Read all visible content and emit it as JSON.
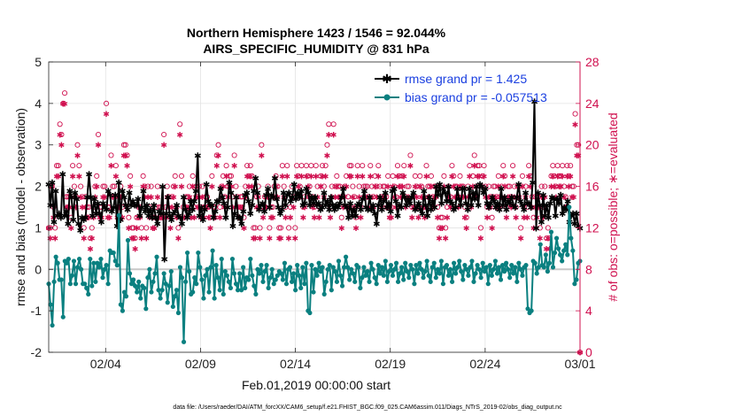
{
  "chart_data": {
    "type": "line",
    "title": "Northern Hemisphere 1423 / 1546 = 92.044%",
    "subtitle": "AIRS_SPECIFIC_HUMIDITY @ 831 hPa",
    "xlabel": "Feb.01,2019 00:00:00 start",
    "ylabel": "rmse and bias (model - observation)",
    "ylabel_right": "# of obs: o=possible; ∗=evaluated",
    "footnote": "data file: /Users/raeder/DAI/ATM_forcXX/CAM6_setup/f.e21.FHIST_BGC.f09_025.CAM6assim.011/Diags_NTrS_2019-02/obs_diag_output.nc",
    "xlim": [
      1,
      29
    ],
    "ylim": [
      -2,
      5
    ],
    "ylim_right": [
      0,
      28
    ],
    "x_ticks": [
      4,
      9,
      14,
      19,
      24,
      29
    ],
    "x_tick_labels": [
      "02/04",
      "02/09",
      "02/14",
      "02/19",
      "02/24",
      "03/01"
    ],
    "y_ticks": [
      -2,
      -1,
      0,
      1,
      2,
      3,
      4,
      5
    ],
    "y_tick_labels": [
      "-2",
      "-1",
      "0",
      "1",
      "2",
      "3",
      "4",
      "5"
    ],
    "y_ticks_right": [
      0,
      4,
      8,
      12,
      16,
      20,
      24,
      28
    ],
    "y_tick_labels_right": [
      "0",
      "4",
      "8",
      "12",
      "16",
      "20",
      "24",
      "28"
    ],
    "grid": true,
    "legend_position": "top-right",
    "series": [
      {
        "name": "rmse grand pr = 1.425",
        "color": "#000000",
        "marker": "asterisk",
        "axis": "left",
        "values": [
          2.05,
          1.55,
          2.1,
          1.15,
          1.9,
          1.3,
          1.35,
          1.25,
          2.3,
          1.3,
          1.4,
          1.1,
          1.9,
          1.75,
          1.2,
          1.85,
          1.7,
          1.1,
          0.95,
          1.25,
          1.2,
          1.25,
          1.75,
          2.3,
          1.75,
          1.3,
          1.7,
          1.35,
          1.6,
          1.35,
          1.15,
          1.6,
          1.5,
          1.45,
          1.9,
          1.8,
          1.4,
          1.5,
          1.8,
          1.05,
          2.1,
          1.2,
          1.9,
          1.75,
          1.55,
          1.45,
          1.85,
          1.55,
          1.65,
          1.55,
          1.55,
          1.7,
          1.3,
          1.5,
          1.9,
          1.4,
          1.55,
          1.3,
          1.45,
          1.25,
          1.55,
          1.25,
          1.1,
          1.4,
          1.35,
          2.0,
          0.25,
          1.35,
          1.75,
          1.3,
          1.2,
          1.35,
          1.4,
          1.55,
          1.3,
          1.25,
          1.1,
          1.75,
          1.45,
          1.25,
          1.35,
          1.65,
          1.45,
          1.65,
          1.9,
          2.75,
          1.3,
          1.5,
          1.2,
          1.45,
          2.05,
          1.65,
          1.55,
          1.55,
          1.25,
          1.4,
          1.65,
          1.65,
          1.95,
          1.75,
          1.6,
          1.25,
          1.5,
          2.1,
          1.85,
          1.05,
          1.35,
          1.75,
          1.25,
          1.25,
          1.1,
          1.4,
          1.8,
          1.85,
          1.65,
          1.35,
          1.55,
          1.9,
          2.2,
          1.85,
          1.45,
          1.55,
          1.6,
          1.4,
          1.8,
          1.95,
          1.5,
          1.8,
          1.75,
          2.2,
          1.7,
          1.5,
          1.35,
          1.45,
          1.85,
          1.55,
          1.8,
          1.85,
          1.65,
          1.75,
          2.05,
          1.7,
          1.85,
          1.75,
          1.9,
          1.55,
          1.6,
          1.95,
          1.85,
          1.55,
          1.75,
          1.6,
          1.75,
          1.55,
          1.6,
          1.45,
          1.5,
          1.85,
          1.55,
          1.65,
          1.45,
          1.75,
          1.55,
          1.45,
          1.55,
          1.5,
          1.6,
          1.75,
          1.95,
          1.55,
          1.5,
          1.25,
          1.6,
          1.3,
          1.45,
          1.3,
          1.55,
          1.6,
          1.45,
          1.7,
          1.9,
          1.5,
          1.45,
          1.75,
          1.45,
          1.55,
          1.35,
          1.1,
          1.55,
          1.75,
          1.45,
          1.65,
          1.85,
          1.5,
          1.6,
          1.4,
          1.9,
          1.95,
          1.65,
          1.3,
          1.55,
          1.5,
          1.85,
          1.75,
          1.55,
          1.7,
          1.6,
          1.75,
          1.85,
          1.45,
          1.5,
          1.6,
          1.45,
          1.35,
          1.9,
          1.55,
          1.3,
          1.75,
          1.45,
          1.65,
          1.5,
          2.0,
          1.8,
          2.05,
          1.6,
          1.95,
          1.85,
          1.65,
          2.0,
          1.65,
          1.6,
          1.45,
          1.5,
          1.95,
          1.7,
          1.55,
          1.95,
          1.95,
          1.6,
          1.45,
          1.95,
          1.55,
          1.85,
          1.7,
          2.0,
          1.55,
          2.05,
          2.0,
          1.85,
          1.95,
          1.6,
          1.5,
          1.6,
          1.75,
          1.65,
          1.5,
          1.6,
          1.45,
          1.95,
          1.55,
          1.75,
          1.45,
          1.65,
          1.6,
          1.75,
          1.55,
          1.5,
          1.75,
          2.05,
          1.65,
          1.55,
          1.45,
          1.85,
          1.6,
          1.6,
          1.5,
          2.1,
          4.05,
          1.0,
          1.85,
          1.55,
          1.15,
          1.8,
          1.3,
          1.55,
          1.25,
          1.6,
          1.75,
          1.7,
          1.3,
          1.7,
          1.6,
          1.8,
          1.35,
          1.5,
          1.45,
          1.65,
          1.15,
          1.3,
          1.35,
          1.1,
          1.35,
          1.05,
          1.0
        ]
      },
      {
        "name": "bias grand pr = -0.057513",
        "color": "#0a8080",
        "marker": "dot",
        "axis": "left",
        "values": [
          -0.35,
          -0.85,
          -1.35,
          -0.3,
          0.3,
          0.15,
          -0.25,
          -0.25,
          -1.15,
          0.2,
          0.15,
          0.25,
          -0.35,
          -0.15,
          0.2,
          -0.35,
          0.05,
          0.25,
          0.0,
          -0.35,
          -0.35,
          -0.45,
          -0.6,
          0.25,
          -0.4,
          0.15,
          -0.3,
          0.15,
          0.05,
          0.25,
          -0.2,
          0.0,
          0.1,
          -0.35,
          0.45,
          0.4,
          0.4,
          0.2,
          0.1,
          1.3,
          -0.85,
          -1.0,
          -0.55,
          -0.65,
          0.7,
          -0.1,
          -0.35,
          -0.25,
          -0.4,
          -0.55,
          -0.3,
          -0.7,
          -0.4,
          -0.45,
          -0.95,
          -0.2,
          0.0,
          -0.55,
          -0.3,
          -0.1,
          0.3,
          -0.5,
          -0.7,
          -0.5,
          -0.1,
          -0.35,
          -0.8,
          -0.4,
          -0.05,
          -0.9,
          -0.65,
          -0.5,
          -1.05,
          0.05,
          -0.2,
          -1.75,
          -0.3,
          0.4,
          -0.05,
          -0.6,
          -0.55,
          -0.2,
          -0.35,
          0.4,
          0.05,
          -0.25,
          -0.7,
          -0.15,
          0.0,
          -0.55,
          0.05,
          0.45,
          -0.7,
          0.1,
          -0.2,
          -0.5,
          0.25,
          -0.6,
          -0.05,
          -0.15,
          -0.3,
          -0.45,
          0.25,
          -0.1,
          -0.35,
          -0.5,
          -0.1,
          -0.5,
          0.05,
          -0.45,
          -0.2,
          -0.25,
          0.25,
          -0.15,
          -0.4,
          -0.6,
          0.0,
          -0.1,
          0.1,
          -0.3,
          -0.05,
          0.1,
          -0.45,
          -0.2,
          0.0,
          -0.35,
          -0.25,
          -0.15,
          -0.05,
          -0.1,
          -0.25,
          0.15,
          -0.35,
          0.0,
          0.05,
          -0.3,
          -0.1,
          -0.5,
          0.1,
          -0.15,
          -0.45,
          0.05,
          -0.35,
          0.15,
          -1.0,
          -1.05,
          0.1,
          -0.55,
          0.0,
          -0.15,
          0.15,
          -0.05,
          0.05,
          -0.6,
          -0.3,
          0.0,
          0.1,
          -0.5,
          0.05,
          -0.05,
          -0.3,
          0.2,
          -0.15,
          -0.4,
          0.05,
          0.3,
          0.05,
          -0.25,
          0.0,
          -0.1,
          -0.3,
          0.1,
          0.05,
          -0.45,
          -0.2,
          0.05,
          -0.15,
          -0.05,
          -0.3,
          0.15,
          0.0,
          -0.2,
          -0.35,
          0.1,
          -0.1,
          0.05,
          -0.15,
          0.2,
          -0.3,
          -0.05,
          0.1,
          -0.15,
          0.0,
          0.15,
          -0.3,
          -0.1,
          0.05,
          -0.25,
          0.15,
          -0.05,
          -0.2,
          0.1,
          0.0,
          -0.35,
          0.1,
          -0.1,
          0.15,
          0.0,
          -0.2,
          -0.05,
          0.2,
          -0.15,
          -0.3,
          0.05,
          0.15,
          -0.2,
          0.0,
          -0.1,
          0.2,
          -0.35,
          0.05,
          0.1,
          -0.15,
          0.0,
          -0.3,
          0.15,
          -0.1,
          0.05,
          0.2,
          -0.05,
          -0.25,
          0.1,
          0.0,
          -0.15,
          0.05,
          0.2,
          -0.3,
          -0.1,
          0.1,
          0.0,
          -0.2,
          0.15,
          -0.05,
          0.05,
          -0.35,
          0.1,
          -0.15,
          0.0,
          0.2,
          -0.1,
          0.05,
          -0.25,
          0.1,
          -0.05,
          0.15,
          0.0,
          -0.2,
          0.1,
          -0.1,
          0.05,
          -0.3,
          0.15,
          0.0,
          -0.15,
          0.05,
          0.1,
          -0.95,
          -1.05,
          -1.0,
          0.2,
          0.15,
          -0.1,
          0.05,
          0.6,
          0.1,
          0.05,
          0.35,
          -0.05,
          0.15,
          0.9,
          0.05,
          0.4,
          0.75,
          0.5,
          0.35,
          0.2,
          0.45,
          0.6,
          0.35,
          1.5,
          0.75,
          0.45,
          -0.35,
          -0.25,
          0.15,
          0.2
        ]
      }
    ],
    "obs_possible": [
      12,
      12,
      16,
      14,
      12,
      18,
      18,
      22,
      21,
      24,
      25,
      15,
      15,
      15,
      13,
      18,
      16,
      15,
      20,
      18,
      16,
      15,
      12,
      15,
      14,
      14,
      11,
      12,
      14,
      16,
      17,
      21,
      14,
      14,
      16,
      16,
      24,
      14,
      14,
      19,
      16,
      16,
      18,
      14,
      15,
      16,
      14,
      20,
      20,
      19,
      13,
      17,
      12,
      12,
      11,
      13,
      14,
      14,
      12,
      17,
      16,
      12,
      16,
      14,
      16,
      13,
      13,
      14,
      16,
      14,
      14,
      14,
      21,
      14,
      16,
      15,
      13,
      15,
      16,
      17,
      14,
      12,
      22,
      17,
      14,
      14,
      15,
      15,
      16,
      14,
      17,
      14,
      16,
      15,
      16,
      14,
      16,
      14,
      15,
      15,
      14,
      13,
      17,
      14,
      14,
      19,
      20,
      14,
      16,
      17,
      15,
      18,
      16,
      17,
      17,
      15,
      19,
      16,
      15,
      14,
      15,
      15,
      13,
      16,
      18,
      17,
      18,
      17,
      12,
      12,
      15,
      16,
      12,
      20,
      14,
      15,
      15,
      16,
      12,
      14,
      14,
      16,
      17,
      16,
      12,
      12,
      18,
      16,
      14,
      18,
      12,
      14,
      16,
      15,
      12,
      18,
      17,
      16,
      18,
      14,
      15,
      18,
      17,
      16,
      18,
      15,
      14,
      18,
      16,
      14,
      17,
      18,
      16,
      18,
      20,
      22,
      14,
      16,
      22,
      16,
      17,
      16,
      16,
      13,
      15,
      16,
      17,
      15,
      18,
      18,
      16,
      15,
      13,
      18,
      16,
      14,
      18,
      16,
      16,
      16,
      15,
      18,
      16,
      15,
      17,
      16,
      18,
      16,
      15,
      16,
      16,
      15,
      17,
      14,
      14,
      17,
      16,
      15,
      18,
      17,
      16,
      17,
      18,
      15,
      16,
      16,
      19,
      14,
      15,
      17,
      16,
      14,
      17,
      16,
      15,
      14,
      18,
      16,
      16,
      17,
      15,
      16,
      16,
      14,
      12,
      13,
      13,
      17,
      12,
      14,
      16,
      15,
      18,
      17,
      16,
      16,
      15,
      17,
      16,
      16,
      14,
      13,
      16,
      18,
      15,
      17,
      19,
      16,
      18,
      18,
      12,
      17,
      18,
      16,
      14,
      16,
      15,
      13,
      16,
      16,
      15,
      17,
      15,
      16,
      18,
      17,
      14,
      16,
      16,
      15,
      18,
      16,
      14,
      16,
      16,
      12,
      17,
      14,
      16,
      14,
      18,
      17,
      15,
      13,
      15,
      14,
      15,
      12,
      16,
      14,
      16,
      11,
      12,
      11,
      17,
      18,
      17,
      16,
      18,
      17,
      17,
      18,
      16,
      15,
      18,
      17,
      18,
      16,
      16,
      23,
      20,
      20,
      0
    ],
    "obs_evaluated": [
      12,
      11,
      16,
      13,
      11,
      17,
      17,
      21,
      20,
      24,
      24,
      14,
      14,
      14,
      12,
      17,
      15,
      14,
      19,
      17,
      15,
      14,
      11,
      14,
      13,
      13,
      10,
      11,
      13,
      15,
      16,
      20,
      13,
      13,
      15,
      15,
      23,
      13,
      13,
      18,
      15,
      15,
      17,
      13,
      14,
      15,
      13,
      19,
      19,
      18,
      12,
      16,
      11,
      11,
      10,
      12,
      13,
      13,
      11,
      16,
      15,
      11,
      15,
      13,
      15,
      12,
      12,
      13,
      15,
      13,
      13,
      13,
      20,
      13,
      15,
      14,
      12,
      14,
      15,
      16,
      13,
      11,
      21,
      16,
      13,
      13,
      14,
      14,
      15,
      13,
      16,
      13,
      15,
      14,
      15,
      13,
      15,
      13,
      14,
      14,
      13,
      12,
      16,
      13,
      13,
      18,
      19,
      13,
      15,
      16,
      14,
      17,
      15,
      16,
      16,
      14,
      18,
      15,
      14,
      13,
      14,
      14,
      12,
      15,
      17,
      16,
      17,
      16,
      11,
      11,
      14,
      15,
      11,
      19,
      13,
      14,
      14,
      15,
      11,
      13,
      13,
      15,
      16,
      15,
      11,
      11,
      17,
      15,
      13,
      17,
      11,
      13,
      15,
      14,
      11,
      17,
      16,
      15,
      17,
      13,
      14,
      17,
      16,
      15,
      17,
      14,
      13,
      17,
      15,
      13,
      16,
      17,
      15,
      17,
      19,
      21,
      13,
      15,
      21,
      15,
      16,
      15,
      15,
      12,
      14,
      15,
      16,
      14,
      17,
      17,
      15,
      14,
      12,
      17,
      15,
      13,
      17,
      15,
      15,
      15,
      14,
      17,
      15,
      14,
      16,
      15,
      17,
      15,
      14,
      15,
      15,
      14,
      16,
      13,
      13,
      16,
      15,
      14,
      17,
      16,
      15,
      16,
      17,
      14,
      15,
      15,
      18,
      13,
      14,
      16,
      15,
      13,
      16,
      15,
      14,
      13,
      17,
      15,
      15,
      16,
      14,
      15,
      15,
      13,
      11,
      12,
      12,
      16,
      11,
      13,
      15,
      14,
      17,
      16,
      15,
      15,
      14,
      16,
      15,
      15,
      13,
      12,
      15,
      17,
      14,
      16,
      18,
      15,
      17,
      17,
      11,
      16,
      17,
      15,
      13,
      15,
      14,
      12,
      15,
      15,
      14,
      16,
      14,
      15,
      17,
      16,
      13,
      15,
      15,
      14,
      17,
      15,
      13,
      15,
      15,
      11,
      16,
      13,
      15,
      13,
      17,
      16,
      14,
      12,
      14,
      13,
      14,
      11,
      15,
      13,
      15,
      10,
      11,
      10,
      16,
      17,
      16,
      15,
      17,
      16,
      16,
      17,
      15,
      14,
      17,
      16,
      17,
      15,
      15,
      22,
      19,
      19,
      0
    ]
  }
}
